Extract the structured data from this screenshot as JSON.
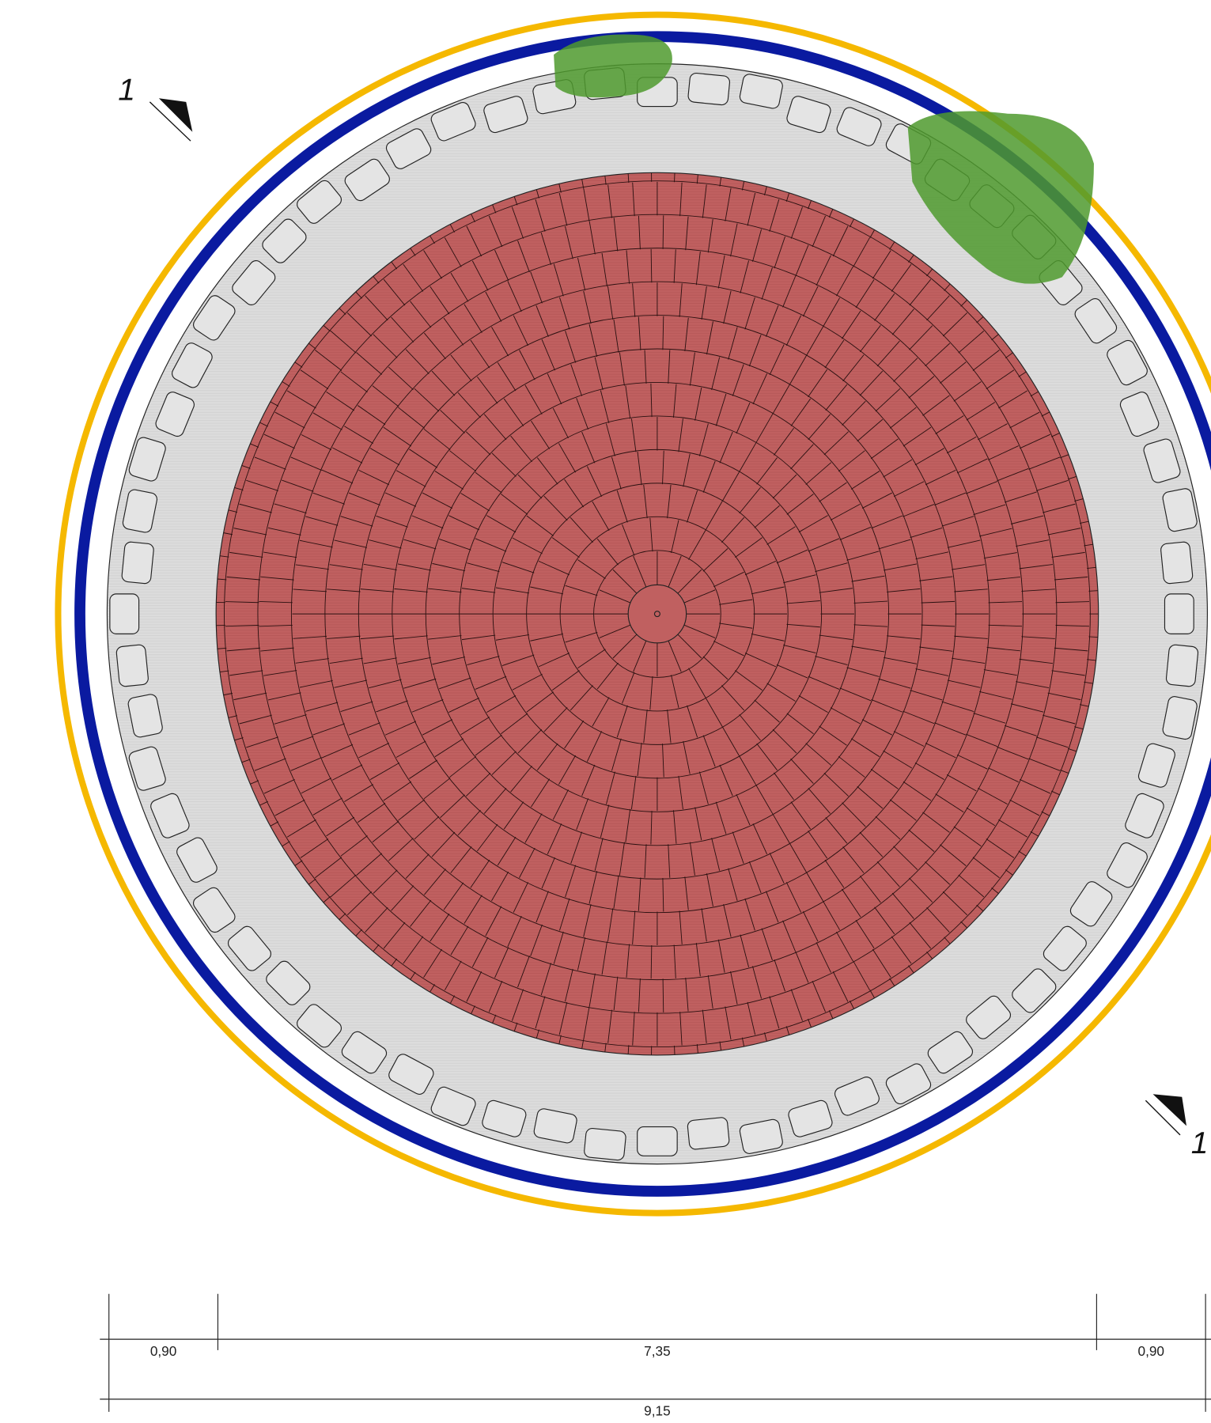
{
  "section_markers": [
    "1",
    "1"
  ],
  "dimensions": {
    "segments": [
      "0,90",
      "7,35",
      "0,90"
    ],
    "total": "9,15"
  }
}
